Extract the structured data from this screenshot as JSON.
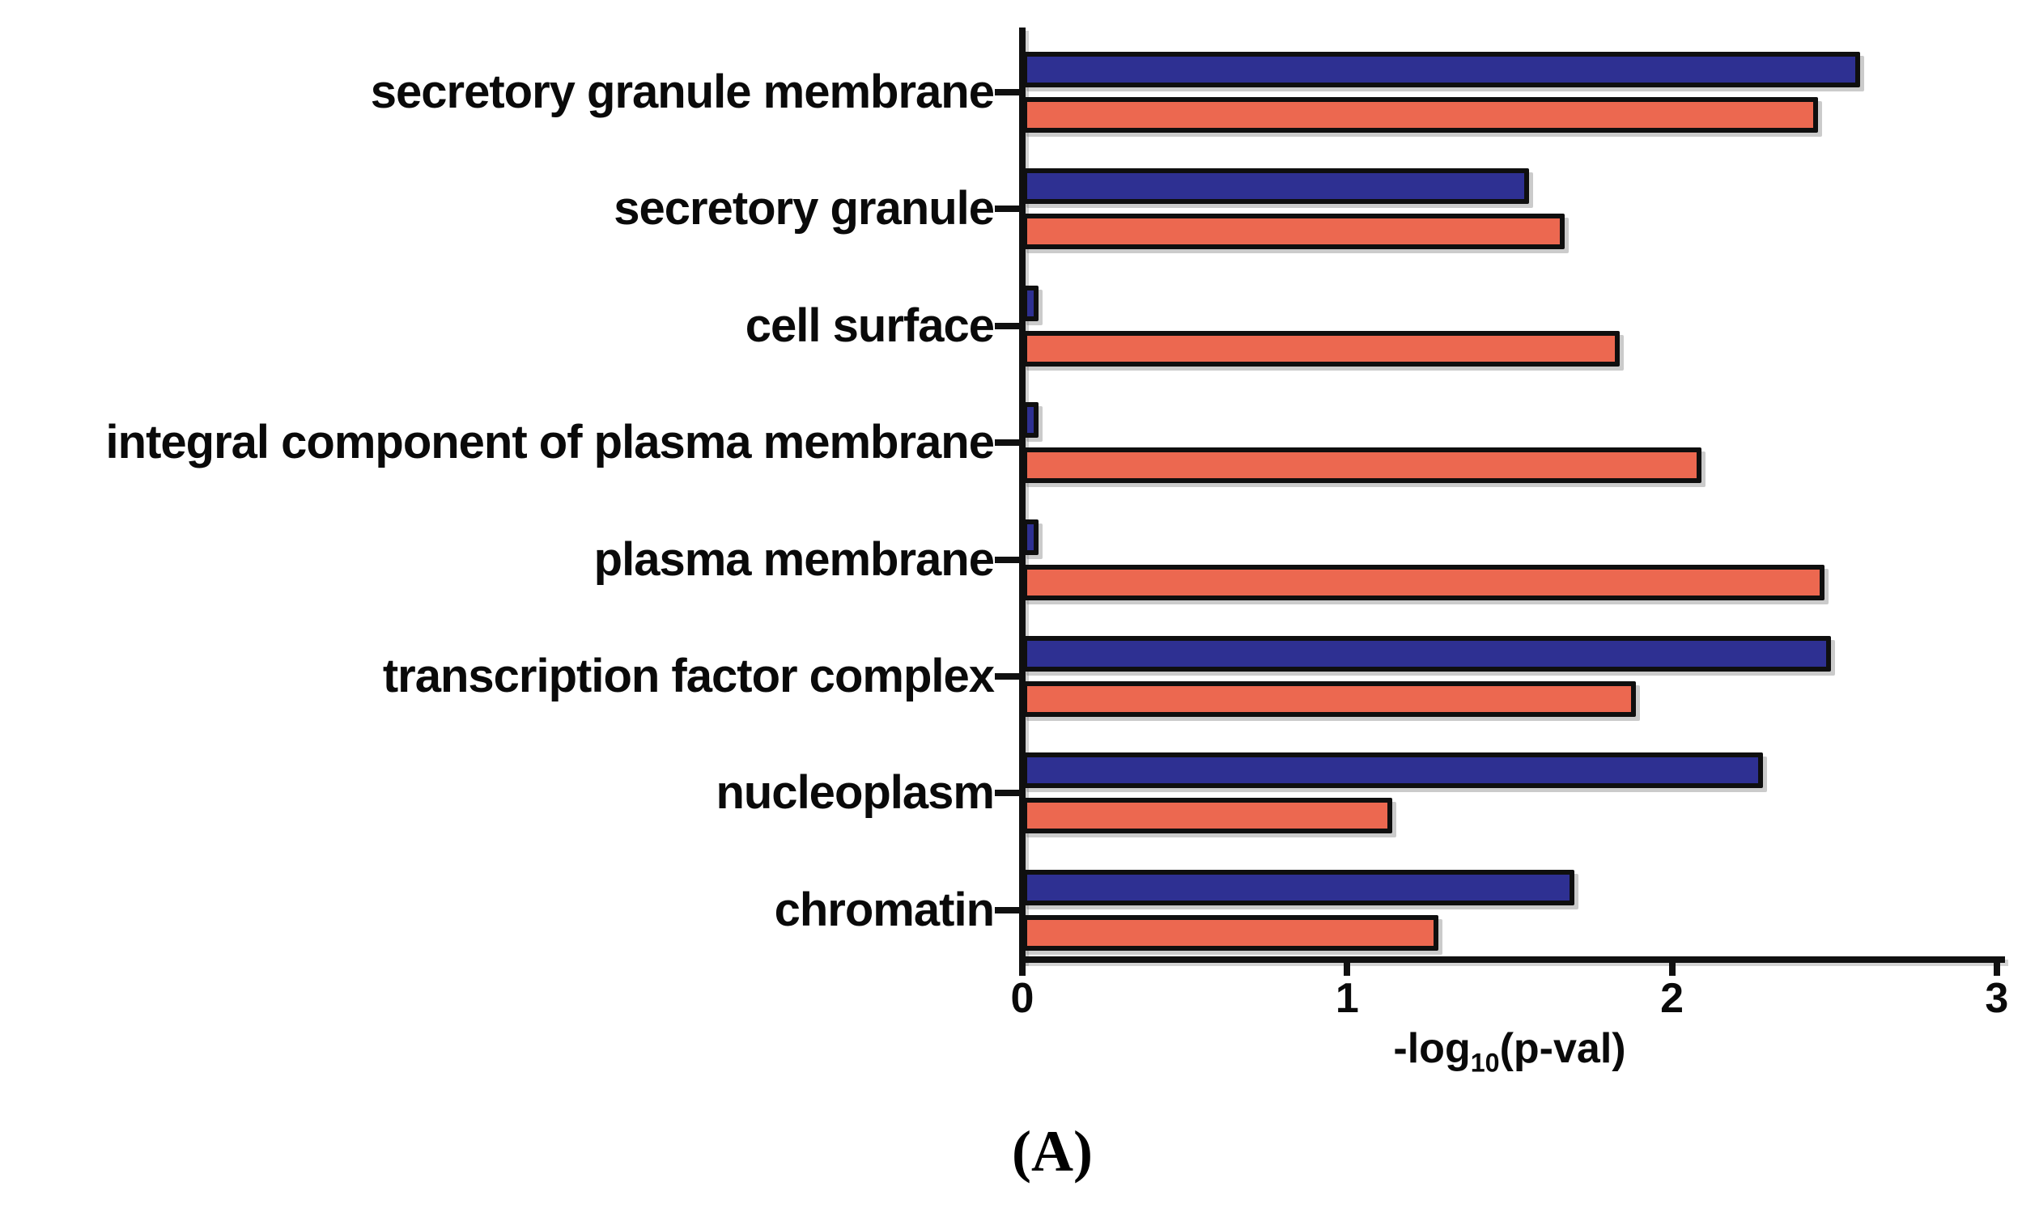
{
  "figure": {
    "caption": "(A)"
  },
  "chart_data": {
    "type": "bar",
    "orientation": "horizontal",
    "title": "",
    "xlabel": "-log10(p-val)",
    "xlabel_parts": {
      "prefix": "-log",
      "subscript": "10",
      "suffix": "(p-val)"
    },
    "ylabel": "",
    "xlim": [
      0,
      3
    ],
    "x_ticks": [
      "0",
      "1",
      "2",
      "3"
    ],
    "grid": false,
    "legend": "none",
    "bar_outline_color": "#0f0f0f",
    "categories": [
      "secretory granule membrane",
      "secretory granule",
      "cell surface",
      "integral component of plasma membrane",
      "plasma membrane",
      "transcription factor complex",
      "nucleoplasm",
      "chromatin"
    ],
    "series": [
      {
        "name": "blue-series",
        "color": "#2e3092",
        "values": [
          2.55,
          1.53,
          0.02,
          0.02,
          0.02,
          2.46,
          2.25,
          1.67
        ]
      },
      {
        "name": "orange-series",
        "color": "#ec6850",
        "values": [
          2.42,
          1.64,
          1.81,
          2.06,
          2.44,
          1.86,
          1.11,
          1.25
        ]
      }
    ]
  }
}
